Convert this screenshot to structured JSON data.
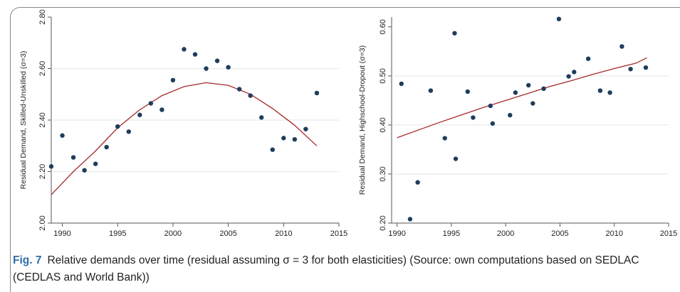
{
  "caption": {
    "label": "Fig. 7",
    "text": "Relative demands over time (residual assuming σ = 3 for both elasticities) (Source: own computations based on SEDLAC (CEDLAS and World Bank))"
  },
  "colors": {
    "dot": "#1f3d5c",
    "fit": "#a52a2a",
    "axis": "#555555"
  },
  "chart_data": [
    {
      "type": "scatter",
      "title": "",
      "xlabel": "",
      "ylabel": "Residual Demand, Skilled-Unskilled (σ=3)",
      "xlim": [
        1989,
        2015
      ],
      "ylim": [
        2.0,
        2.8
      ],
      "xticks": [
        1990,
        1995,
        2000,
        2005,
        2010,
        2015
      ],
      "xtick_labels": [
        "1990",
        "1995",
        "2000",
        "2005",
        "2010",
        "2015"
      ],
      "yticks": [
        2.0,
        2.2,
        2.4,
        2.6,
        2.8
      ],
      "ytick_labels": [
        "2.00",
        "2.20",
        "2.40",
        "2.60",
        "2.80"
      ],
      "grid": "horizontal",
      "points": [
        {
          "x": 1989,
          "y": 2.22
        },
        {
          "x": 1990,
          "y": 2.34
        },
        {
          "x": 1991,
          "y": 2.255
        },
        {
          "x": 1992,
          "y": 2.205
        },
        {
          "x": 1993,
          "y": 2.23
        },
        {
          "x": 1994,
          "y": 2.295
        },
        {
          "x": 1995,
          "y": 2.375
        },
        {
          "x": 1996,
          "y": 2.355
        },
        {
          "x": 1997,
          "y": 2.42
        },
        {
          "x": 1998,
          "y": 2.465
        },
        {
          "x": 1999,
          "y": 2.44
        },
        {
          "x": 2000,
          "y": 2.555
        },
        {
          "x": 2001,
          "y": 2.675
        },
        {
          "x": 2002,
          "y": 2.655
        },
        {
          "x": 2003,
          "y": 2.6
        },
        {
          "x": 2004,
          "y": 2.63
        },
        {
          "x": 2005,
          "y": 2.605
        },
        {
          "x": 2006,
          "y": 2.52
        },
        {
          "x": 2007,
          "y": 2.495
        },
        {
          "x": 2008,
          "y": 2.41
        },
        {
          "x": 2009,
          "y": 2.285
        },
        {
          "x": 2010,
          "y": 2.33
        },
        {
          "x": 2011,
          "y": 2.325
        },
        {
          "x": 2012,
          "y": 2.365
        },
        {
          "x": 2013,
          "y": 2.505
        }
      ],
      "fit": {
        "type": "quadratic",
        "x": [
          1989,
          1991,
          1993,
          1995,
          1997,
          1999,
          2001,
          2003,
          2005,
          2007,
          2009,
          2011,
          2013
        ],
        "y": [
          2.11,
          2.2,
          2.28,
          2.37,
          2.44,
          2.495,
          2.53,
          2.545,
          2.535,
          2.5,
          2.445,
          2.38,
          2.3
        ]
      }
    },
    {
      "type": "scatter",
      "title": "",
      "xlabel": "",
      "ylabel": "Residual Demand, Highschool-Dropout (σ=3)",
      "xlim": [
        1989.5,
        2015
      ],
      "ylim": [
        0.2,
        0.62
      ],
      "xticks": [
        1990,
        1995,
        2000,
        2005,
        2010,
        2015
      ],
      "xtick_labels": [
        "1990",
        "1995",
        "2000",
        "2005",
        "2010",
        "2015"
      ],
      "yticks": [
        0.2,
        0.3,
        0.4,
        0.5,
        0.6
      ],
      "ytick_labels": [
        "0.20",
        "0.30",
        "0.40",
        "0.50",
        "0.60"
      ],
      "grid": "horizontal",
      "points": [
        {
          "x": 1990.4,
          "y": 0.484
        },
        {
          "x": 1991.2,
          "y": 0.208
        },
        {
          "x": 1991.9,
          "y": 0.283
        },
        {
          "x": 1993.1,
          "y": 0.47
        },
        {
          "x": 1994.4,
          "y": 0.373
        },
        {
          "x": 1995.3,
          "y": 0.587
        },
        {
          "x": 1995.4,
          "y": 0.331
        },
        {
          "x": 1996.5,
          "y": 0.468
        },
        {
          "x": 1997.0,
          "y": 0.415
        },
        {
          "x": 1998.6,
          "y": 0.439
        },
        {
          "x": 1998.8,
          "y": 0.403
        },
        {
          "x": 2000.4,
          "y": 0.42
        },
        {
          "x": 2000.9,
          "y": 0.466
        },
        {
          "x": 2002.1,
          "y": 0.481
        },
        {
          "x": 2002.5,
          "y": 0.444
        },
        {
          "x": 2003.5,
          "y": 0.474
        },
        {
          "x": 2004.9,
          "y": 0.616
        },
        {
          "x": 2005.8,
          "y": 0.499
        },
        {
          "x": 2006.3,
          "y": 0.508
        },
        {
          "x": 2007.6,
          "y": 0.535
        },
        {
          "x": 2008.7,
          "y": 0.47
        },
        {
          "x": 2009.6,
          "y": 0.466
        },
        {
          "x": 2010.7,
          "y": 0.56
        },
        {
          "x": 2011.5,
          "y": 0.514
        },
        {
          "x": 2012.9,
          "y": 0.517
        }
      ],
      "fit": {
        "type": "quadratic",
        "x": [
          1990,
          1992,
          1994,
          1996,
          1998,
          2000,
          2002,
          2004,
          2006,
          2008,
          2010,
          2012,
          2013
        ],
        "y": [
          0.374,
          0.39,
          0.406,
          0.421,
          0.436,
          0.45,
          0.464,
          0.478,
          0.49,
          0.503,
          0.515,
          0.526,
          0.537
        ]
      }
    }
  ]
}
